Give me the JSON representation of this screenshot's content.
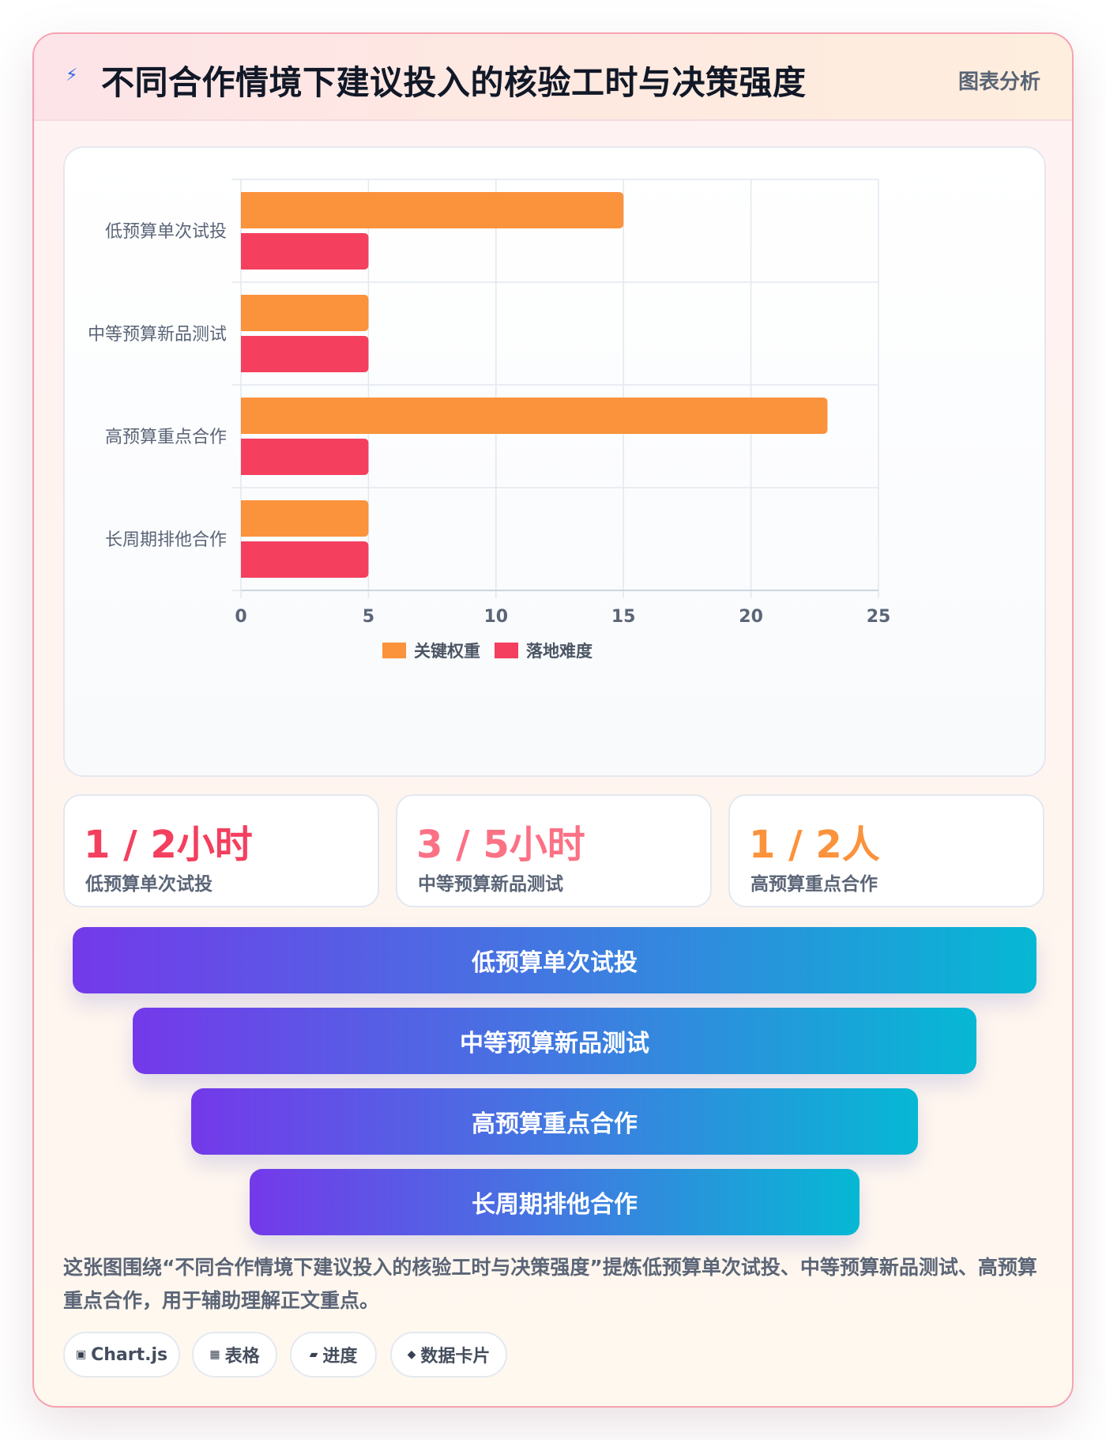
{
  "header": {
    "title": "不同合作情境下建议投入的核验工时与决策强度",
    "tag": "图表分析",
    "icon": "bolt-icon"
  },
  "chart_data": {
    "type": "bar",
    "orientation": "horizontal",
    "categories": [
      "低预算单次试投",
      "中等预算新品测试",
      "高预算重点合作",
      "长周期排他合作"
    ],
    "series": [
      {
        "name": "关键权重",
        "color": "#fb923c",
        "values": [
          15,
          5,
          23,
          5
        ]
      },
      {
        "name": "落地难度",
        "color": "#f43f5e",
        "values": [
          5,
          5,
          5,
          5
        ]
      }
    ],
    "xlim": [
      0,
      25
    ],
    "xticks": [
      "0",
      "5",
      "10",
      "15",
      "20",
      "25"
    ],
    "grid": true,
    "legend_position": "bottom"
  },
  "stats": [
    {
      "value": "1 / 2小时",
      "label": "低预算单次试投",
      "color": "#f43f5e"
    },
    {
      "value": "3 / 5小时",
      "label": "中等预算新品测试",
      "color": "#fb7185"
    },
    {
      "value": "1 / 2人",
      "label": "高预算重点合作",
      "color": "#fb923c"
    }
  ],
  "funnel": [
    "低预算单次试投",
    "中等预算新品测试",
    "高预算重点合作",
    "长周期排他合作"
  ],
  "note": "这张图围绕“不同合作情境下建议投入的核验工时与决策强度”提炼低预算单次试投、中等预算新品测试、高预算重点合作，用于辅助理解正文重点。",
  "chips": [
    {
      "icon": "▣",
      "label": "Chart.js"
    },
    {
      "icon": "▦",
      "label": "表格"
    },
    {
      "icon": "▰",
      "label": "进度"
    },
    {
      "icon": "◆",
      "label": "数据卡片"
    }
  ]
}
